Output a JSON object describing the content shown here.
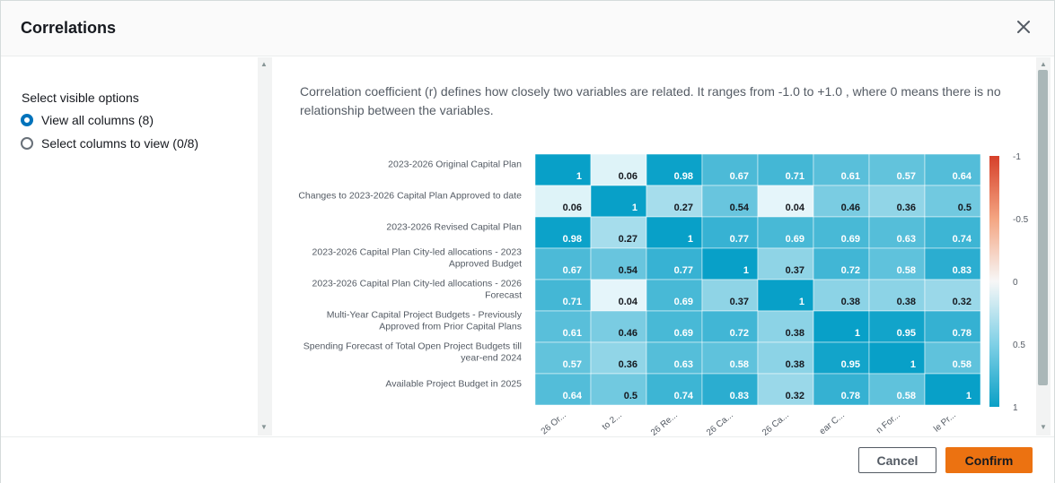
{
  "dialog": {
    "title": "Correlations",
    "close_icon": "close-icon"
  },
  "sidebar": {
    "heading": "Select visible options",
    "options": [
      {
        "label": "View all columns (8)",
        "selected": true
      },
      {
        "label": "Select columns to view (0/8)",
        "selected": false
      }
    ]
  },
  "description": "Correlation coefficient (r) defines how closely two variables are related. It ranges from -1.0 to +1.0 , where 0 means there is no relationship between the variables.",
  "footer": {
    "cancel_label": "Cancel",
    "confirm_label": "Confirm"
  },
  "colors": {
    "accent": "#0073bb",
    "confirm": "#ec7211",
    "positive_high": "#0aa0c6",
    "negative_high": "#d6402a"
  },
  "chart_data": {
    "type": "heatmap",
    "rows": [
      [
        "2023-2026 Original Capital Plan"
      ],
      [
        "Changes to 2023-2026 Capital Plan Approved to date"
      ],
      [
        "2023-2026 Revised Capital Plan"
      ],
      [
        "2023-2026 Capital Plan City-led allocations - 2023",
        "Approved Budget"
      ],
      [
        "2023-2026 Capital Plan City-led allocations - 2026",
        "Forecast"
      ],
      [
        "Multi-Year Capital Project Budgets - Previously",
        "Approved from Prior Capital Plans"
      ],
      [
        "Spending Forecast of Total Open Project Budgets till",
        "year-end 2024"
      ],
      [
        "Available Project Budget in 2025"
      ]
    ],
    "column_labels": [
      "26 Or...",
      "to 2...",
      "26 Re...",
      "26 Ca...",
      "26 Ca...",
      "ear C...",
      "n For...",
      "le Pr..."
    ],
    "values": [
      [
        1,
        0.06,
        0.98,
        0.67,
        0.71,
        0.61,
        0.57,
        0.64
      ],
      [
        0.06,
        1,
        0.27,
        0.54,
        0.04,
        0.46,
        0.36,
        0.5
      ],
      [
        0.98,
        0.27,
        1,
        0.77,
        0.69,
        0.69,
        0.63,
        0.74
      ],
      [
        0.67,
        0.54,
        0.77,
        1,
        0.37,
        0.72,
        0.58,
        0.83
      ],
      [
        0.71,
        0.04,
        0.69,
        0.37,
        1,
        0.38,
        0.38,
        0.32
      ],
      [
        0.61,
        0.46,
        0.69,
        0.72,
        0.38,
        1,
        0.95,
        0.78
      ],
      [
        0.57,
        0.36,
        0.63,
        0.58,
        0.38,
        0.95,
        1,
        0.58
      ],
      [
        0.64,
        0.5,
        0.74,
        0.83,
        0.32,
        0.78,
        0.58,
        1
      ]
    ],
    "colorbar": {
      "range": [
        -1,
        1
      ],
      "ticks": [
        "-1",
        "-0.5",
        "0",
        "0.5",
        "1"
      ],
      "orientation": "-1 at top, 1 at bottom"
    }
  }
}
